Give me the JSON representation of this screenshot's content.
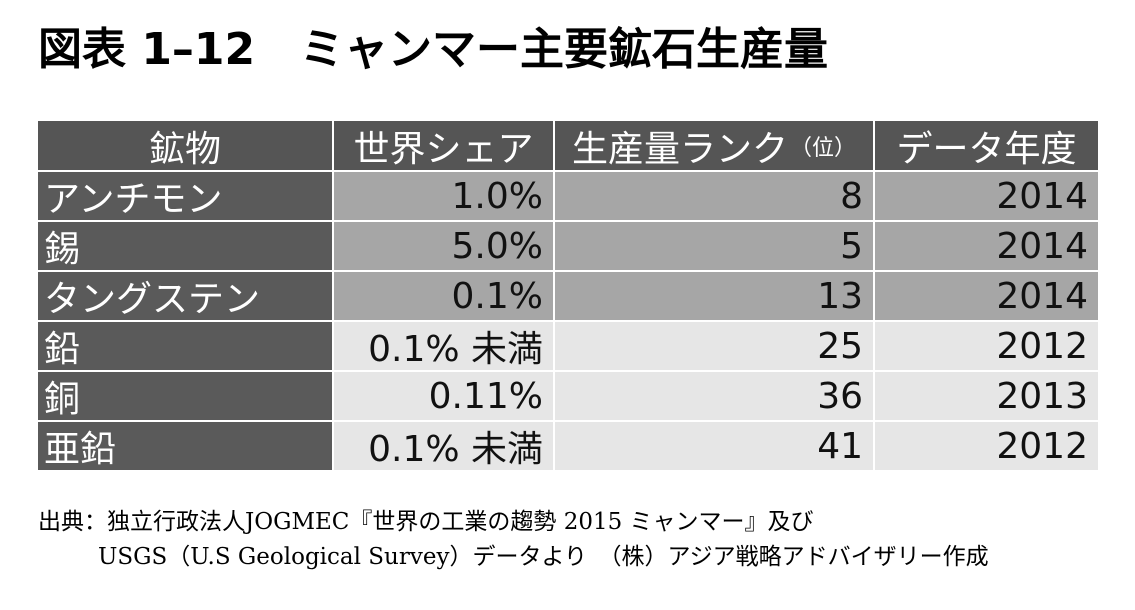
{
  "title": {
    "figure_number": "図表 1–12",
    "text": "ミャンマー主要鉱石生産量"
  },
  "colors": {
    "header_bg": "#555555",
    "mineral_col_bg": "#5a5a5a",
    "grid_line": "#ffffff"
  },
  "table": {
    "headers": {
      "mineral": "鉱物",
      "world_share": "世界シェア",
      "rank": "生産量ランク",
      "rank_unit": "（位）",
      "year": "データ年度"
    },
    "rows": [
      {
        "mineral": "アンチモン",
        "world_share": "1.0%",
        "rank": "8",
        "year": "2014",
        "bg": "#a6a6a6"
      },
      {
        "mineral": "錫",
        "world_share": "5.0%",
        "rank": "5",
        "year": "2014",
        "bg": "#a6a6a6"
      },
      {
        "mineral": "タングステン",
        "world_share": "0.1%",
        "rank": "13",
        "year": "2014",
        "bg": "#a6a6a6"
      },
      {
        "mineral": "鉛",
        "world_share": "0.1% 未満",
        "rank": "25",
        "year": "2012",
        "bg": "#e6e6e6"
      },
      {
        "mineral": "銅",
        "world_share": "0.11%",
        "rank": "36",
        "year": "2013",
        "bg": "#e6e6e6"
      },
      {
        "mineral": "亜鉛",
        "world_share": "0.1% 未満",
        "rank": "41",
        "year": "2012",
        "bg": "#e6e6e6"
      }
    ]
  },
  "source": {
    "line1": "出典：独立行政法人JOGMEC『世界の工業の趨勢 2015 ミャンマー』及び",
    "line2": "USGS（U.S Geological Survey）データより　（株）アジア戦略アドバイザリー作成"
  }
}
